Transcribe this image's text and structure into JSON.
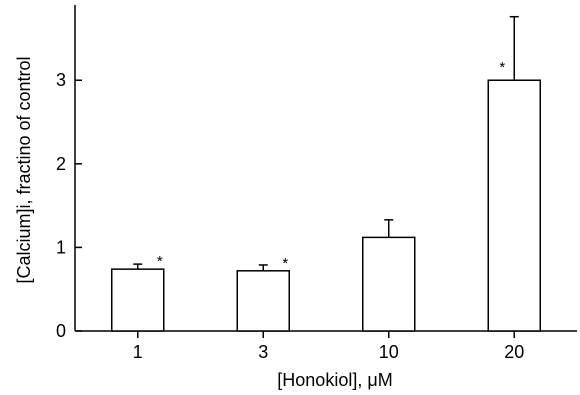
{
  "chart_data": {
    "type": "bar",
    "categories": [
      "1",
      "3",
      "10",
      "20"
    ],
    "values": [
      0.74,
      0.72,
      1.12,
      3.0
    ],
    "error_upper": [
      0.8,
      0.79,
      1.33,
      3.76
    ],
    "significance": [
      "*",
      "*",
      "",
      "*"
    ],
    "xlabel": "[Honokiol], μM",
    "ylabel": "[Calcium]i, fractino of control",
    "ylim": [
      0,
      3.9
    ],
    "yticks": [
      0,
      1,
      2,
      3
    ],
    "grid": false,
    "legend": "none",
    "colors": {
      "bar_fill": "#ffffff",
      "bar_stroke": "#000000"
    }
  }
}
